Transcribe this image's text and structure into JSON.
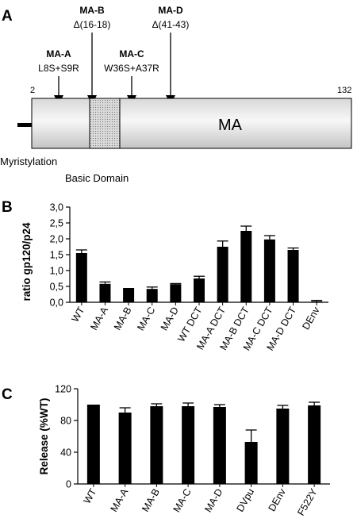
{
  "figure": {
    "panels": [
      "A",
      "B",
      "C"
    ],
    "diagram": {
      "start_residue": "2",
      "end_residue": "132",
      "domain_label": "MA",
      "myristylation_label": "Myristylation",
      "basic_domain_label": "Basic Domain",
      "mutants": [
        {
          "name": "MA-A",
          "desc": "L8S+S9R"
        },
        {
          "name": "MA-B",
          "desc": "Δ(16-18)"
        },
        {
          "name": "MA-C",
          "desc": "W36S+A37R"
        },
        {
          "name": "MA-D",
          "desc": "Δ(41-43)"
        }
      ]
    }
  },
  "chart_data": [
    {
      "type": "bar",
      "panel": "B",
      "ylabel": "ratio gp120/p24",
      "ylim": [
        0,
        3
      ],
      "yticks": [
        "0,0",
        "0,5",
        "1,0",
        "1,5",
        "2,0",
        "2,5",
        "3,0"
      ],
      "categories": [
        "WT",
        "MA-A",
        "MA-B",
        "MA-C",
        "MA-D",
        "WT DCT",
        "MA-A DCT",
        "MA-B DCT",
        "MA-C DCT",
        "MA-D DCT",
        "DEnv"
      ],
      "values": [
        1.55,
        0.58,
        0.45,
        0.42,
        0.57,
        0.75,
        1.75,
        2.25,
        1.98,
        1.65,
        0.03
      ],
      "errors": [
        0.1,
        0.06,
        0.0,
        0.06,
        0.02,
        0.07,
        0.18,
        0.15,
        0.12,
        0.06,
        0.03
      ],
      "bar_color": "#000000"
    },
    {
      "type": "bar",
      "panel": "C",
      "ylabel": "Release (%WT)",
      "ylim": [
        0,
        120
      ],
      "yticks": [
        "0",
        "40",
        "80",
        "120"
      ],
      "categories": [
        "WT",
        "MA-A",
        "MA-B",
        "MA-C",
        "MA-D",
        "DVpu",
        "DEnv",
        "F522Y"
      ],
      "values": [
        100,
        90,
        98,
        98,
        97,
        53,
        95,
        99
      ],
      "errors": [
        0,
        6,
        3,
        4,
        3,
        15,
        4,
        4
      ],
      "bar_color": "#000000"
    }
  ]
}
